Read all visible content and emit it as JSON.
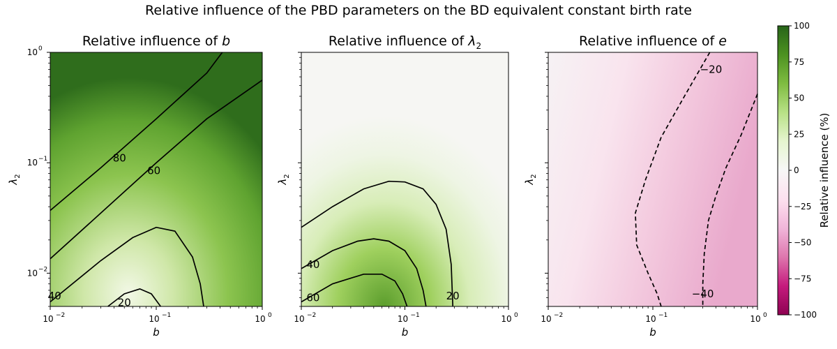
{
  "suptitle": "Relative influence of the PBD parameters on the BD equivalent constant birth rate",
  "colorbar": {
    "label": "Relative influence (%)",
    "range": [
      -100,
      100
    ],
    "ticks": [
      "100",
      "75",
      "50",
      "25",
      "0",
      "−25",
      "−50",
      "−75",
      "−100"
    ],
    "colormap": "PiYG",
    "colors": [
      "#8e0152",
      "#c51b7d",
      "#de77ae",
      "#f1b6da",
      "#fde0ef",
      "#f7f7f7",
      "#e6f5d0",
      "#b8e186",
      "#7fbc41",
      "#4d9221",
      "#276419"
    ]
  },
  "chart_data": [
    {
      "type": "heatmap",
      "title_prefix": "Relative influence of ",
      "title_symbol": "b",
      "xlabel": "b",
      "ylabel": "λ2",
      "xscale": "log",
      "yscale": "log",
      "xlim": [
        0.01,
        1
      ],
      "ylim": [
        0.005,
        1
      ],
      "xticks": [
        "10",
        "10",
        "10"
      ],
      "xtick_exp": [
        "−2",
        "−1",
        "0"
      ],
      "yticks": [
        "10",
        "10",
        "10"
      ],
      "ytick_exp": [
        "−2",
        "−1",
        "0"
      ],
      "contour_levels": [
        20,
        40,
        60,
        80
      ],
      "contour_labels": [
        "80",
        "60",
        "40",
        "20"
      ],
      "contours": [
        {
          "level": 80,
          "style": "solid",
          "points": [
            [
              0.01,
              0.037
            ],
            [
              0.03,
              0.09
            ],
            [
              0.1,
              0.25
            ],
            [
              0.3,
              0.65
            ],
            [
              0.42,
              1.0
            ]
          ]
        },
        {
          "level": 60,
          "style": "solid",
          "points": [
            [
              0.01,
              0.0135
            ],
            [
              0.03,
              0.035
            ],
            [
              0.1,
              0.1
            ],
            [
              0.3,
              0.25
            ],
            [
              1.0,
              0.56
            ]
          ]
        },
        {
          "level": 40,
          "style": "solid",
          "points": [
            [
              0.01,
              0.0055
            ],
            [
              0.03,
              0.013
            ],
            [
              0.06,
              0.021
            ],
            [
              0.1,
              0.026
            ],
            [
              0.15,
              0.024
            ],
            [
              0.22,
              0.014
            ],
            [
              0.26,
              0.008
            ],
            [
              0.28,
              0.005
            ]
          ]
        },
        {
          "level": 20,
          "style": "solid",
          "points": [
            [
              0.035,
              0.005
            ],
            [
              0.05,
              0.0065
            ],
            [
              0.07,
              0.0072
            ],
            [
              0.09,
              0.0065
            ],
            [
              0.11,
              0.005
            ]
          ]
        }
      ],
      "label_points": [
        [
          0.045,
          0.11
        ],
        [
          0.095,
          0.085
        ],
        [
          0.011,
          0.0062
        ],
        [
          0.05,
          0.0054
        ]
      ]
    },
    {
      "type": "heatmap",
      "title_prefix": "Relative influence of ",
      "title_symbol": "λ",
      "title_sub": "2",
      "xlabel": "b",
      "ylabel": "λ2",
      "xscale": "log",
      "yscale": "log",
      "xlim": [
        0.01,
        1
      ],
      "ylim": [
        0.005,
        1
      ],
      "xticks": [
        "10",
        "10",
        "10"
      ],
      "xtick_exp": [
        "−2",
        "−1",
        "0"
      ],
      "contour_levels": [
        20,
        40,
        60
      ],
      "contour_labels": [
        "40",
        "60",
        "20"
      ],
      "contours": [
        {
          "level": 20,
          "style": "solid",
          "points": [
            [
              0.01,
              0.026
            ],
            [
              0.02,
              0.04
            ],
            [
              0.04,
              0.058
            ],
            [
              0.07,
              0.068
            ],
            [
              0.1,
              0.067
            ],
            [
              0.15,
              0.058
            ],
            [
              0.2,
              0.042
            ],
            [
              0.25,
              0.025
            ],
            [
              0.28,
              0.012
            ],
            [
              0.29,
              0.005
            ]
          ]
        },
        {
          "level": 40,
          "style": "solid",
          "points": [
            [
              0.01,
              0.011
            ],
            [
              0.02,
              0.016
            ],
            [
              0.035,
              0.0195
            ],
            [
              0.05,
              0.0205
            ],
            [
              0.07,
              0.0195
            ],
            [
              0.1,
              0.016
            ],
            [
              0.13,
              0.011
            ],
            [
              0.15,
              0.007
            ],
            [
              0.16,
              0.005
            ]
          ]
        },
        {
          "level": 60,
          "style": "solid",
          "points": [
            [
              0.01,
              0.0055
            ],
            [
              0.02,
              0.008
            ],
            [
              0.04,
              0.0098
            ],
            [
              0.06,
              0.0098
            ],
            [
              0.08,
              0.0085
            ],
            [
              0.095,
              0.0065
            ],
            [
              0.105,
              0.005
            ]
          ]
        }
      ],
      "label_points": [
        [
          0.013,
          0.012
        ],
        [
          0.013,
          0.006
        ],
        [
          0.29,
          0.0062
        ]
      ]
    },
    {
      "type": "heatmap",
      "title_prefix": "Relative influence of ",
      "title_symbol": "e",
      "xlabel": "b",
      "ylabel": "λ2",
      "xscale": "log",
      "yscale": "log",
      "xlim": [
        0.01,
        1
      ],
      "ylim": [
        0.005,
        1
      ],
      "xticks": [
        "10",
        "10",
        "10"
      ],
      "xtick_exp": [
        "−2",
        "−1",
        "0"
      ],
      "contour_levels": [
        -40,
        -20
      ],
      "contour_labels": [
        "−20",
        "−40"
      ],
      "contours": [
        {
          "level": -20,
          "style": "dashed",
          "points": [
            [
              0.35,
              1.0
            ],
            [
              0.2,
              0.4
            ],
            [
              0.12,
              0.17
            ],
            [
              0.085,
              0.07
            ],
            [
              0.068,
              0.035
            ],
            [
              0.07,
              0.018
            ],
            [
              0.09,
              0.01
            ],
            [
              0.11,
              0.0065
            ],
            [
              0.12,
              0.005
            ]
          ]
        },
        {
          "level": -40,
          "style": "dashed",
          "points": [
            [
              1.0,
              0.42
            ],
            [
              0.7,
              0.18
            ],
            [
              0.5,
              0.09
            ],
            [
              0.4,
              0.05
            ],
            [
              0.34,
              0.03
            ],
            [
              0.31,
              0.015
            ],
            [
              0.3,
              0.008
            ],
            [
              0.3,
              0.005
            ]
          ]
        }
      ],
      "label_points": [
        [
          0.36,
          0.7
        ],
        [
          0.3,
          0.0065
        ]
      ]
    }
  ]
}
